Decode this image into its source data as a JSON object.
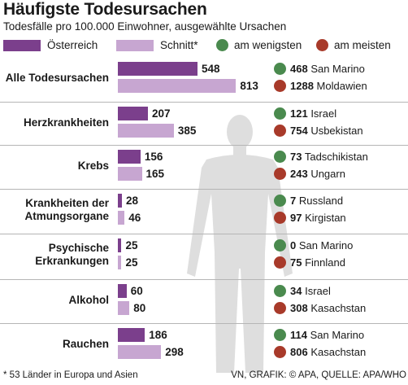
{
  "title": "Häufigste Todesursachen",
  "subtitle": "Todesfälle pro 100.000 Einwohner, ausgewählte Ursachen",
  "legend": {
    "austria": "Österreich",
    "average": "Schnitt*",
    "least": "am wenigsten",
    "most": "am meisten"
  },
  "colors": {
    "austria": "#7b3f8c",
    "average": "#c7a6d1",
    "least": "#4a8a4e",
    "most": "#a83a2a",
    "silhouette": "#dedede"
  },
  "footnote": "* 53 Länder in Europa und Asien",
  "credit": "VN, GRAFIK: © APA, QUELLE: APA/WHO",
  "chart_data": {
    "type": "bar",
    "orientation": "horizontal",
    "categories": [
      "Alle Todesursachen",
      "Herzkrankheiten",
      "Krebs",
      "Krankheiten der Atmungsorgane",
      "Psychische Erkrankungen",
      "Alkohol",
      "Rauchen"
    ],
    "category_lines": [
      [
        "Alle Todesursachen"
      ],
      [
        "Herzkrankheiten"
      ],
      [
        "Krebs"
      ],
      [
        "Krankheiten der",
        "Atmungsorgane"
      ],
      [
        "Psychische",
        "Erkrankungen"
      ],
      [
        "Alkohol"
      ],
      [
        "Rauchen"
      ]
    ],
    "series": [
      {
        "name": "Österreich",
        "values": [
          548,
          207,
          156,
          28,
          25,
          60,
          186
        ]
      },
      {
        "name": "Schnitt*",
        "values": [
          813,
          385,
          165,
          46,
          25,
          80,
          298
        ]
      }
    ],
    "extremes": [
      {
        "least": {
          "value": 468,
          "country": "San Marino"
        },
        "most": {
          "value": 1288,
          "country": "Moldawien"
        }
      },
      {
        "least": {
          "value": 121,
          "country": "Israel"
        },
        "most": {
          "value": 754,
          "country": "Usbekistan"
        }
      },
      {
        "least": {
          "value": 73,
          "country": "Tadschikistan"
        },
        "most": {
          "value": 243,
          "country": "Ungarn"
        }
      },
      {
        "least": {
          "value": 7,
          "country": "Russland"
        },
        "most": {
          "value": 97,
          "country": "Kirgistan"
        }
      },
      {
        "least": {
          "value": 0,
          "country": "San Marino"
        },
        "most": {
          "value": 75,
          "country": "Finnland"
        }
      },
      {
        "least": {
          "value": 34,
          "country": "Israel"
        },
        "most": {
          "value": 308,
          "country": "Kasachstan"
        }
      },
      {
        "least": {
          "value": 114,
          "country": "San Marino"
        },
        "most": {
          "value": 806,
          "country": "Kasachstan"
        }
      }
    ]
  }
}
